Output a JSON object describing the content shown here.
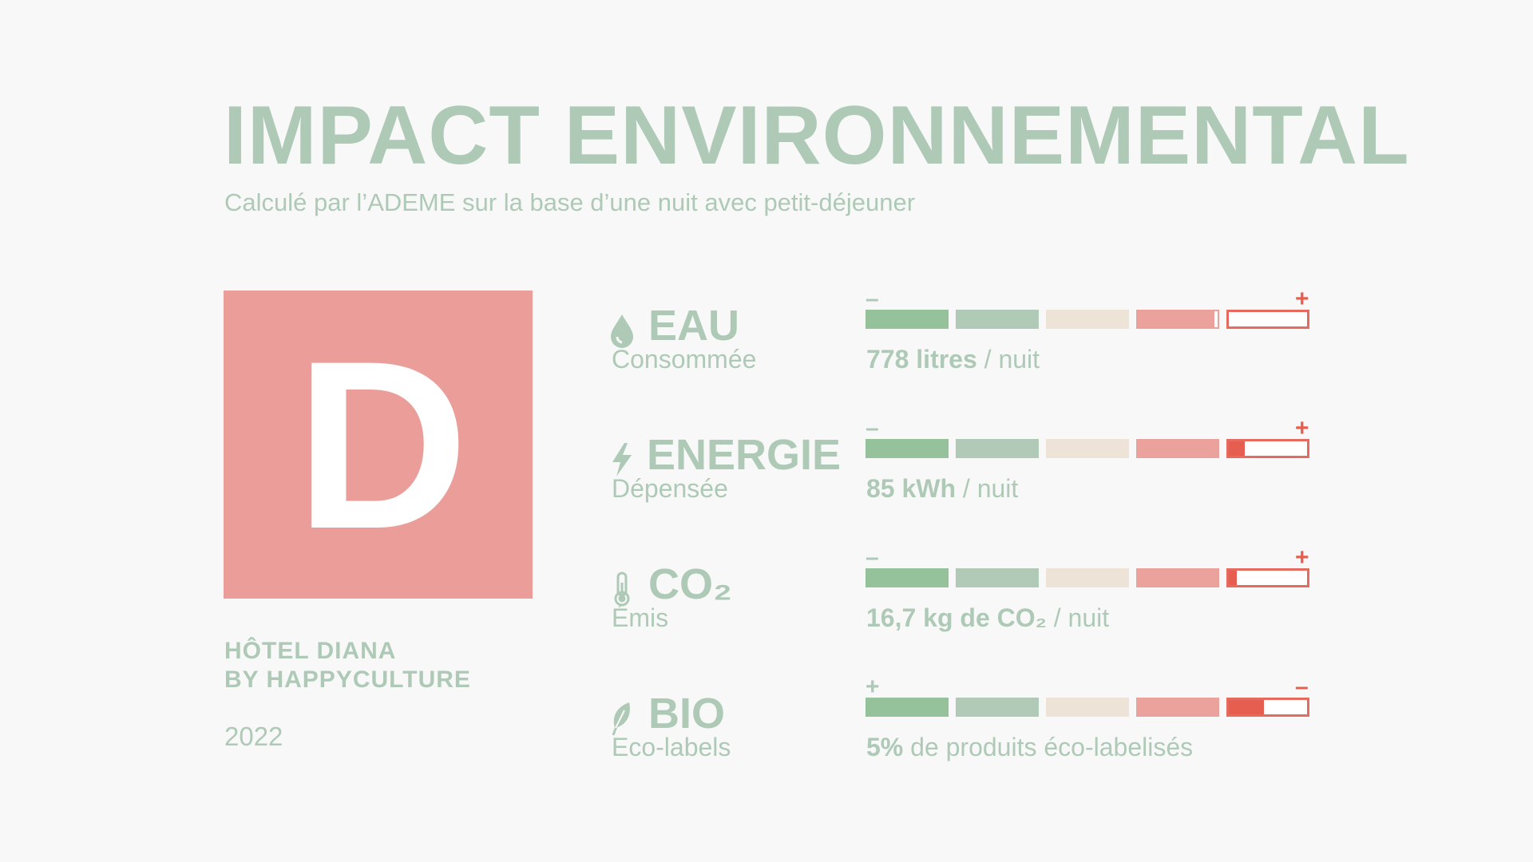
{
  "title": "IMPACT ENVIRONNEMENTAL",
  "subtitle": "Calculé par l’ADEME sur la base d’une nuit avec petit-déjeuner",
  "grade": "D",
  "hotel": {
    "line1": "HÔTEL DIANA",
    "line2": "BY HAPPYCULTURE"
  },
  "year": "2022",
  "colors": {
    "text": "#aecab7",
    "grade_bg": "#eb9e99",
    "scale_green": "#95c29b",
    "scale_sage": "#b1cab8",
    "scale_beige": "#ede3d6",
    "scale_pink": "#eba19c",
    "scale_red": "#e65e50"
  },
  "indicators": [
    {
      "icon": "water-drop-icon",
      "label": "EAU",
      "sublabel": "Consommée",
      "value_bold": "778 litres",
      "value_rest": " / nuit",
      "scale_left": "–",
      "scale_right": "+",
      "last_segment_fill": 0.0
    },
    {
      "icon": "lightning-bolt-icon",
      "label": "ENERGIE",
      "sublabel": "Dépensée",
      "value_bold": "85 kWh",
      "value_rest": " / nuit",
      "scale_left": "–",
      "scale_right": "+",
      "last_segment_fill": 0.2
    },
    {
      "icon": "thermometer-icon",
      "label": "CO₂",
      "sublabel": "Émis",
      "value_bold": "16,7 kg de CO₂",
      "value_rest": " / nuit",
      "scale_left": "–",
      "scale_right": "+",
      "last_segment_fill": 0.1
    },
    {
      "icon": "leaf-icon",
      "label": "BIO",
      "sublabel": "Eco-labels",
      "value_bold": "5%",
      "value_rest": " de produits éco-labelisés",
      "scale_left": "+",
      "scale_right": "–",
      "last_segment_fill": 0.45
    }
  ]
}
